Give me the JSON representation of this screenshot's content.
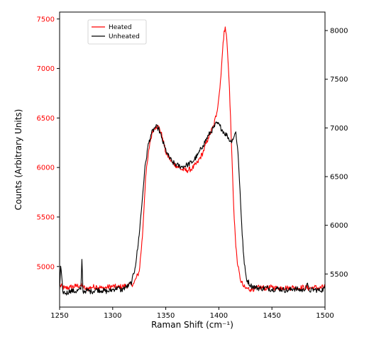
{
  "chart_data": {
    "type": "line",
    "xlabel": "Raman Shift (cm⁻¹)",
    "ylabel": "Counts (Arbitrary Units)",
    "xlim": [
      1250,
      1500
    ],
    "x_ticks": [
      1250,
      1300,
      1350,
      1400,
      1450,
      1500
    ],
    "ylim_left": [
      4590,
      7570
    ],
    "yticks_left": [
      5000,
      5500,
      6000,
      6500,
      7000,
      7500
    ],
    "ylim_right": [
      5160,
      8190
    ],
    "yticks_right": [
      5500,
      6000,
      6500,
      7000,
      7500,
      8000
    ],
    "grid": false,
    "legend_position": "top-left",
    "series": [
      {
        "name": "Heated",
        "color": "#ff0000",
        "axis": "left",
        "points": [
          [
            1250,
            4810
          ],
          [
            1255,
            4780
          ],
          [
            1260,
            4790
          ],
          [
            1265,
            4800
          ],
          [
            1270,
            4810
          ],
          [
            1275,
            4770
          ],
          [
            1280,
            4790
          ],
          [
            1285,
            4800
          ],
          [
            1290,
            4780
          ],
          [
            1295,
            4790
          ],
          [
            1300,
            4800
          ],
          [
            1305,
            4790
          ],
          [
            1310,
            4800
          ],
          [
            1315,
            4810
          ],
          [
            1320,
            4830
          ],
          [
            1325,
            4950
          ],
          [
            1328,
            5300
          ],
          [
            1331,
            5900
          ],
          [
            1335,
            6250
          ],
          [
            1338,
            6380
          ],
          [
            1341,
            6420
          ],
          [
            1344,
            6400
          ],
          [
            1347,
            6300
          ],
          [
            1350,
            6150
          ],
          [
            1353,
            6100
          ],
          [
            1356,
            6050
          ],
          [
            1360,
            6020
          ],
          [
            1365,
            5980
          ],
          [
            1370,
            5970
          ],
          [
            1375,
            5990
          ],
          [
            1380,
            6050
          ],
          [
            1385,
            6150
          ],
          [
            1390,
            6300
          ],
          [
            1395,
            6420
          ],
          [
            1398,
            6550
          ],
          [
            1401,
            6800
          ],
          [
            1403,
            7100
          ],
          [
            1405,
            7380
          ],
          [
            1406,
            7420
          ],
          [
            1407,
            7350
          ],
          [
            1408,
            7200
          ],
          [
            1410,
            6800
          ],
          [
            1412,
            6200
          ],
          [
            1414,
            5600
          ],
          [
            1416,
            5200
          ],
          [
            1418,
            5000
          ],
          [
            1420,
            4880
          ],
          [
            1423,
            4800
          ],
          [
            1425,
            4780
          ],
          [
            1430,
            4770
          ],
          [
            1435,
            4780
          ],
          [
            1440,
            4790
          ],
          [
            1445,
            4780
          ],
          [
            1450,
            4790
          ],
          [
            1455,
            4780
          ],
          [
            1460,
            4790
          ],
          [
            1465,
            4780
          ],
          [
            1470,
            4790
          ],
          [
            1475,
            4780
          ],
          [
            1480,
            4790
          ],
          [
            1485,
            4780
          ],
          [
            1490,
            4790
          ],
          [
            1495,
            4780
          ],
          [
            1500,
            4800
          ]
        ]
      },
      {
        "name": "Unheated",
        "color": "#000000",
        "axis": "right",
        "points": [
          [
            1250,
            5340
          ],
          [
            1251,
            5580
          ],
          [
            1253,
            5320
          ],
          [
            1256,
            5300
          ],
          [
            1260,
            5330
          ],
          [
            1265,
            5320
          ],
          [
            1270,
            5340
          ],
          [
            1271,
            5650
          ],
          [
            1272,
            5320
          ],
          [
            1275,
            5330
          ],
          [
            1280,
            5320
          ],
          [
            1285,
            5340
          ],
          [
            1290,
            5330
          ],
          [
            1295,
            5320
          ],
          [
            1300,
            5340
          ],
          [
            1305,
            5360
          ],
          [
            1308,
            5330
          ],
          [
            1310,
            5350
          ],
          [
            1315,
            5380
          ],
          [
            1318,
            5420
          ],
          [
            1321,
            5560
          ],
          [
            1324,
            5800
          ],
          [
            1327,
            6150
          ],
          [
            1330,
            6550
          ],
          [
            1333,
            6800
          ],
          [
            1336,
            6930
          ],
          [
            1340,
            7010
          ],
          [
            1343,
            7000
          ],
          [
            1346,
            6900
          ],
          [
            1349,
            6800
          ],
          [
            1352,
            6720
          ],
          [
            1356,
            6650
          ],
          [
            1360,
            6620
          ],
          [
            1365,
            6600
          ],
          [
            1370,
            6620
          ],
          [
            1375,
            6650
          ],
          [
            1380,
            6720
          ],
          [
            1385,
            6820
          ],
          [
            1390,
            6920
          ],
          [
            1395,
            7000
          ],
          [
            1398,
            7050
          ],
          [
            1401,
            7020
          ],
          [
            1405,
            6950
          ],
          [
            1408,
            6920
          ],
          [
            1411,
            6860
          ],
          [
            1414,
            6900
          ],
          [
            1416,
            6960
          ],
          [
            1418,
            6750
          ],
          [
            1420,
            6350
          ],
          [
            1422,
            5900
          ],
          [
            1424,
            5600
          ],
          [
            1426,
            5450
          ],
          [
            1430,
            5380
          ],
          [
            1435,
            5360
          ],
          [
            1440,
            5350
          ],
          [
            1445,
            5360
          ],
          [
            1450,
            5340
          ],
          [
            1455,
            5350
          ],
          [
            1460,
            5340
          ],
          [
            1465,
            5330
          ],
          [
            1470,
            5350
          ],
          [
            1475,
            5340
          ],
          [
            1480,
            5330
          ],
          [
            1483,
            5400
          ],
          [
            1485,
            5330
          ],
          [
            1490,
            5340
          ],
          [
            1495,
            5330
          ],
          [
            1500,
            5350
          ]
        ]
      }
    ]
  }
}
